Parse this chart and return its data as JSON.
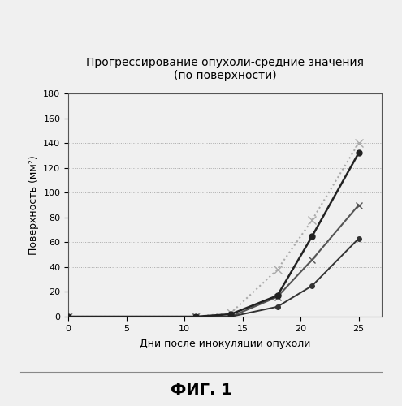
{
  "title": "Прогрессирование опухоли-средние значения\n(по поверхности)",
  "xlabel": "Дни после инокуляции опухоли",
  "ylabel": "Поверхность (мм²)",
  "fig_label": "ФИГ. 1",
  "xlim": [
    0,
    27
  ],
  "ylim": [
    0,
    180
  ],
  "xticks": [
    0,
    5,
    10,
    15,
    20,
    25
  ],
  "yticks": [
    0,
    20,
    40,
    60,
    80,
    100,
    120,
    140,
    160,
    180
  ],
  "series": [
    {
      "x": [
        0,
        11,
        14,
        18,
        21,
        25
      ],
      "y": [
        0,
        0,
        2,
        17,
        65,
        132
      ],
      "color": "#222222",
      "linestyle": "-",
      "marker": "o",
      "markersize": 5,
      "linewidth": 1.8,
      "markerfacecolor": "#222222",
      "zorder": 4
    },
    {
      "x": [
        0,
        11,
        14,
        18,
        21,
        25
      ],
      "y": [
        0,
        0,
        3,
        38,
        78,
        140
      ],
      "color": "#aaaaaa",
      "linestyle": ":",
      "marker": "x",
      "markersize": 7,
      "linewidth": 1.5,
      "markerfacecolor": "none",
      "zorder": 2
    },
    {
      "x": [
        0,
        11,
        14,
        18,
        21,
        25
      ],
      "y": [
        0,
        0,
        0,
        16,
        46,
        90
      ],
      "color": "#555555",
      "linestyle": "-",
      "marker": "x",
      "markersize": 6,
      "linewidth": 1.5,
      "markerfacecolor": "none",
      "zorder": 3
    },
    {
      "x": [
        0,
        11,
        14,
        18,
        21,
        25
      ],
      "y": [
        0,
        0,
        0,
        8,
        25,
        63
      ],
      "color": "#333333",
      "linestyle": "-",
      "marker": "o",
      "markersize": 4,
      "linewidth": 1.4,
      "markerfacecolor": "#333333",
      "zorder": 3
    }
  ],
  "background_color": "#f0f0f0",
  "plot_bg_color": "#f0f0f0",
  "grid_color": "#aaaaaa",
  "grid_linestyle": ":",
  "grid_linewidth": 0.7,
  "title_fontsize": 10,
  "label_fontsize": 9,
  "tick_fontsize": 8
}
